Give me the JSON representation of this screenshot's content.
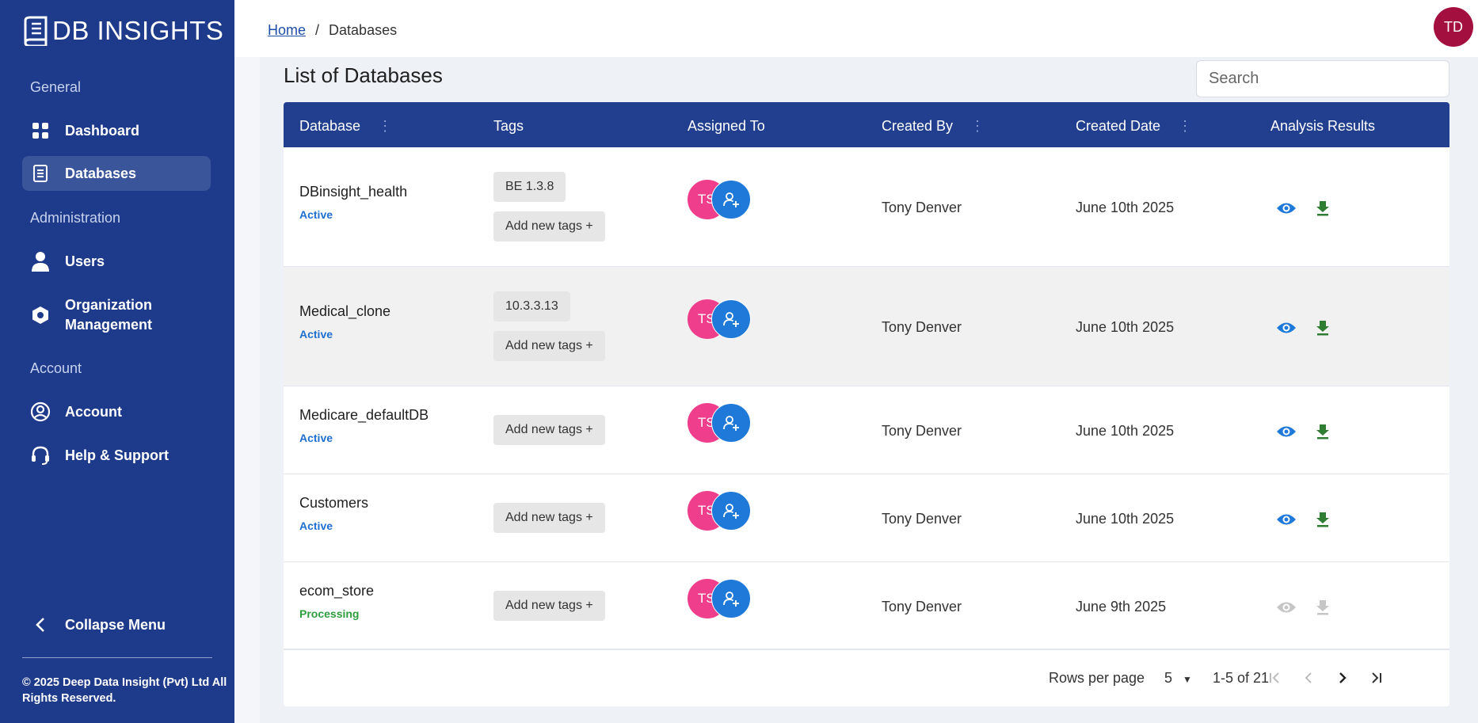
{
  "app": {
    "logo_db": "DB",
    "logo_rest": " INSIGHTS"
  },
  "sidebar": {
    "sections": [
      "General",
      "Administration",
      "Account"
    ],
    "items": [
      {
        "label": "Dashboard",
        "icon": "grid-icon"
      },
      {
        "label": "Databases",
        "icon": "database-icon",
        "active": true
      },
      {
        "label": "Users",
        "icon": "user-icon"
      },
      {
        "label": "Organization Management",
        "icon": "hexagon-icon"
      },
      {
        "label": "Account",
        "icon": "account-circle-icon"
      },
      {
        "label": "Help & Support",
        "icon": "headset-icon"
      }
    ],
    "collapse_label": "Collapse Menu",
    "copyright": "© 2025 Deep Data Insight (Pvt) Ltd All Rights Reserved."
  },
  "breadcrumb": {
    "home": "Home",
    "separator": "/",
    "current": "Databases"
  },
  "user": {
    "initials": "TD"
  },
  "page": {
    "title": "List of Databases",
    "search_placeholder": "Search"
  },
  "table": {
    "headers": [
      "Database",
      "Tags",
      "Assigned To",
      "Created By",
      "Created Date",
      "Analysis Results"
    ],
    "add_tags_label": "Add new tags +",
    "rows": [
      {
        "name": "DBinsight_health",
        "status": "Active",
        "tag": "BE 1.3.8",
        "assignee_initials": "TS",
        "created_by": "Tony Denver",
        "created_date": "June 10th 2025",
        "results_enabled": true
      },
      {
        "name": "Medical_clone",
        "status": "Active",
        "tag": "10.3.3.13",
        "assignee_initials": "TS",
        "created_by": "Tony Denver",
        "created_date": "June 10th 2025",
        "results_enabled": true
      },
      {
        "name": "Medicare_defaultDB",
        "status": "Active",
        "tag": "",
        "assignee_initials": "TS",
        "created_by": "Tony Denver",
        "created_date": "June 10th 2025",
        "results_enabled": true
      },
      {
        "name": "Customers",
        "status": "Active",
        "tag": "",
        "assignee_initials": "TS",
        "created_by": "Tony Denver",
        "created_date": "June 10th 2025",
        "results_enabled": true
      },
      {
        "name": "ecom_store",
        "status": "Processing",
        "tag": "",
        "assignee_initials": "TS",
        "created_by": "Tony Denver",
        "created_date": "June 9th 2025",
        "results_enabled": false
      }
    ]
  },
  "pagination": {
    "rows_per_page_label": "Rows per page",
    "rows_per_page": "5",
    "range": "1-5 of 21"
  },
  "colors": {
    "sidebar": "#1e3a8a",
    "header": "#213f8e",
    "active_status": "#1e6fd0",
    "processing_status": "#2e9d3e",
    "view_icon": "#1e79d8",
    "download_icon": "#2e7d32",
    "avatar": "#a3103f"
  }
}
